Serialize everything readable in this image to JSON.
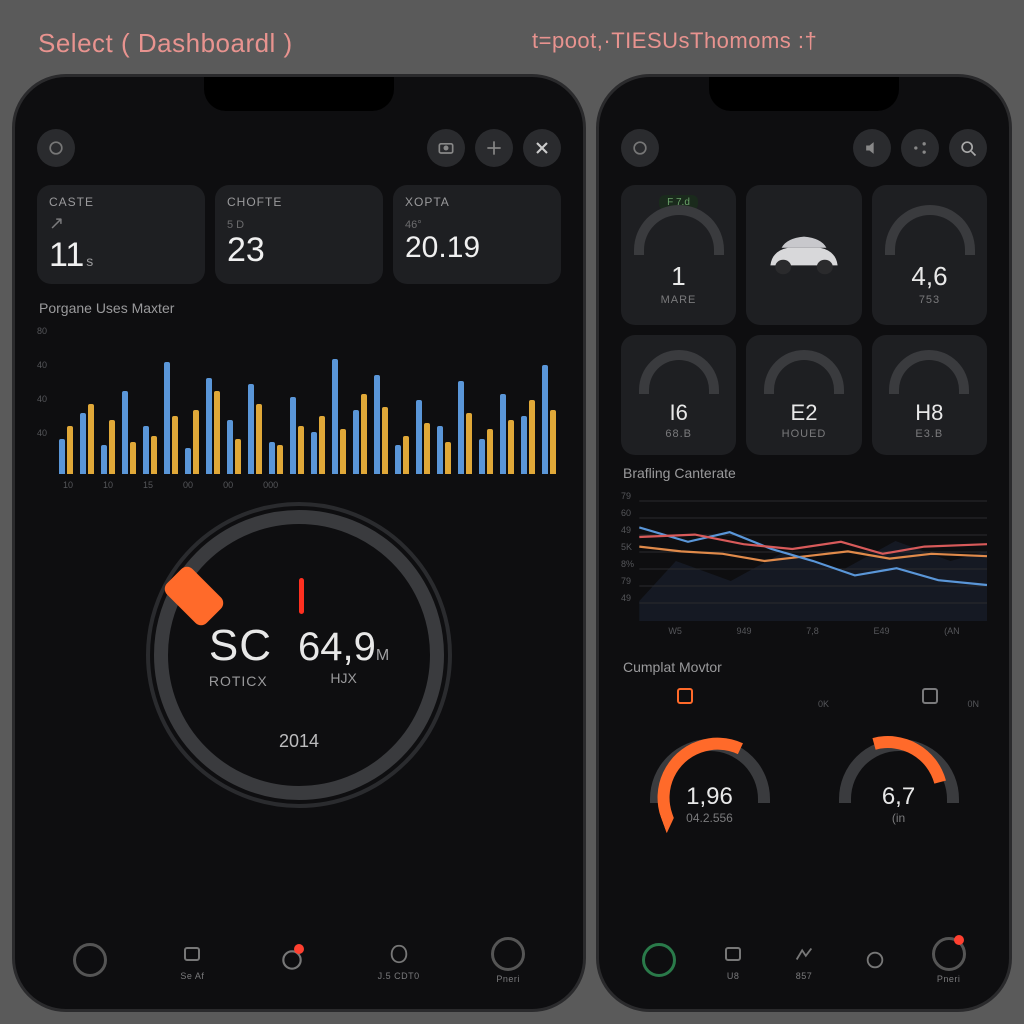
{
  "colors": {
    "bg": "#5a5a5a",
    "phone_bg": "#0e0e10",
    "card_bg": "#1e1f22",
    "accent_pink": "#e8938f",
    "accent_orange": "#ff6a2a",
    "accent_blue": "#5a96d8",
    "accent_yellow": "#e0a838",
    "text": "#e8e8e8",
    "muted": "#9a9a9c",
    "ring": "#3a3b3e"
  },
  "headerLeft": "Select ( Dashboardl )",
  "headerRight": "t=poot,·TIESUsThomoms :†",
  "left": {
    "cards": [
      {
        "label": "CASTE",
        "sub": "",
        "value": "11",
        "suffix": "s"
      },
      {
        "label": "CHOFTE",
        "sub": "5 D",
        "value": "23",
        "suffix": ""
      },
      {
        "label": "XOPTA",
        "sub": "46°",
        "value": "20.19",
        "suffix": ""
      }
    ],
    "barSection": "Porgane Uses Maxter",
    "barchart": {
      "type": "bar",
      "ylabels": [
        "80",
        "40",
        "40",
        "40"
      ],
      "xlabels": [
        "10",
        "10",
        "15",
        "00",
        "00",
        "000"
      ],
      "groups": [
        [
          22,
          30
        ],
        [
          38,
          44
        ],
        [
          18,
          34
        ],
        [
          52,
          20
        ],
        [
          30,
          24
        ],
        [
          70,
          36
        ],
        [
          16,
          40
        ],
        [
          60,
          52
        ],
        [
          34,
          22
        ],
        [
          56,
          44
        ],
        [
          20,
          18
        ],
        [
          48,
          30
        ],
        [
          26,
          36
        ],
        [
          72,
          28
        ],
        [
          40,
          50
        ],
        [
          62,
          42
        ],
        [
          18,
          24
        ],
        [
          46,
          32
        ],
        [
          30,
          20
        ],
        [
          58,
          38
        ],
        [
          22,
          28
        ],
        [
          50,
          34
        ],
        [
          36,
          46
        ],
        [
          68,
          40
        ]
      ],
      "color_primary": "#5a96d8",
      "color_secondary": "#e0a838"
    },
    "gauge": {
      "left_label": "SC",
      "left_sub": "ROTICX",
      "right_value": "64,9",
      "right_sup": "M",
      "right_sub": "HJX",
      "year": "2014",
      "knob_color": "#ff6a2a",
      "needle_color": "#ff3020"
    },
    "nav": [
      {
        "label": "",
        "kind": "ring"
      },
      {
        "label": "Se Af",
        "kind": "icon",
        "dot": false
      },
      {
        "label": "",
        "kind": "icon",
        "dot": true
      },
      {
        "label": "J.5 CDT0",
        "kind": "icon",
        "dot": false
      },
      {
        "label": "Pneri",
        "kind": "ring",
        "dot": false
      }
    ]
  },
  "right": {
    "tiles_top": [
      {
        "value": "1",
        "unit": "MARE",
        "pill": "F 7.d"
      },
      {
        "kind": "car"
      },
      {
        "value": "4,6",
        "unit": "753",
        "pill": ""
      }
    ],
    "tiles_mid": [
      {
        "value": "I6",
        "unit": "68.B"
      },
      {
        "value": "E2",
        "unit": "HOUED"
      },
      {
        "value": "H8",
        "unit": "E3.B"
      }
    ],
    "lineSection": "Brafling Canterate",
    "linechart": {
      "type": "line",
      "ylabels": [
        "79",
        "60",
        "49",
        "5K",
        "8%",
        "79",
        "49"
      ],
      "xlabels": [
        "W5",
        "949",
        "7,8",
        "E49",
        "(AN"
      ],
      "series": [
        {
          "name": "orange",
          "color": "#e08a4a",
          "points": [
            [
              0,
              62
            ],
            [
              12,
              58
            ],
            [
              24,
              56
            ],
            [
              36,
              50
            ],
            [
              48,
              54
            ],
            [
              60,
              58
            ],
            [
              72,
              52
            ],
            [
              84,
              56
            ],
            [
              100,
              54
            ]
          ]
        },
        {
          "name": "blue",
          "color": "#5a96d8",
          "points": [
            [
              0,
              78
            ],
            [
              14,
              66
            ],
            [
              26,
              74
            ],
            [
              38,
              60
            ],
            [
              50,
              50
            ],
            [
              62,
              38
            ],
            [
              74,
              44
            ],
            [
              86,
              34
            ],
            [
              100,
              30
            ]
          ]
        },
        {
          "name": "red",
          "color": "#d85a5a",
          "points": [
            [
              0,
              70
            ],
            [
              16,
              72
            ],
            [
              30,
              64
            ],
            [
              44,
              60
            ],
            [
              58,
              66
            ],
            [
              70,
              56
            ],
            [
              82,
              62
            ],
            [
              100,
              64
            ]
          ]
        }
      ],
      "area_color": "#1a2230"
    },
    "miniSection": "Cumplat Movtor",
    "minis": [
      {
        "value": "1,96",
        "sub": "04.2.556",
        "left": "",
        "right": "",
        "highlight": "#ff6a2a",
        "icon_color": "#ff6a2a"
      },
      {
        "value": "6,7",
        "sub": "(in",
        "left": "0K",
        "right": "0N",
        "highlight": "#ff6a2a",
        "icon_color": "#7a7a7c"
      }
    ],
    "nav": [
      {
        "label": "",
        "kind": "ring-green"
      },
      {
        "label": "U8",
        "kind": "icon"
      },
      {
        "label": "857",
        "kind": "icon"
      },
      {
        "label": "",
        "kind": "icon"
      },
      {
        "label": "Pneri",
        "kind": "ring",
        "dot": true
      }
    ]
  }
}
